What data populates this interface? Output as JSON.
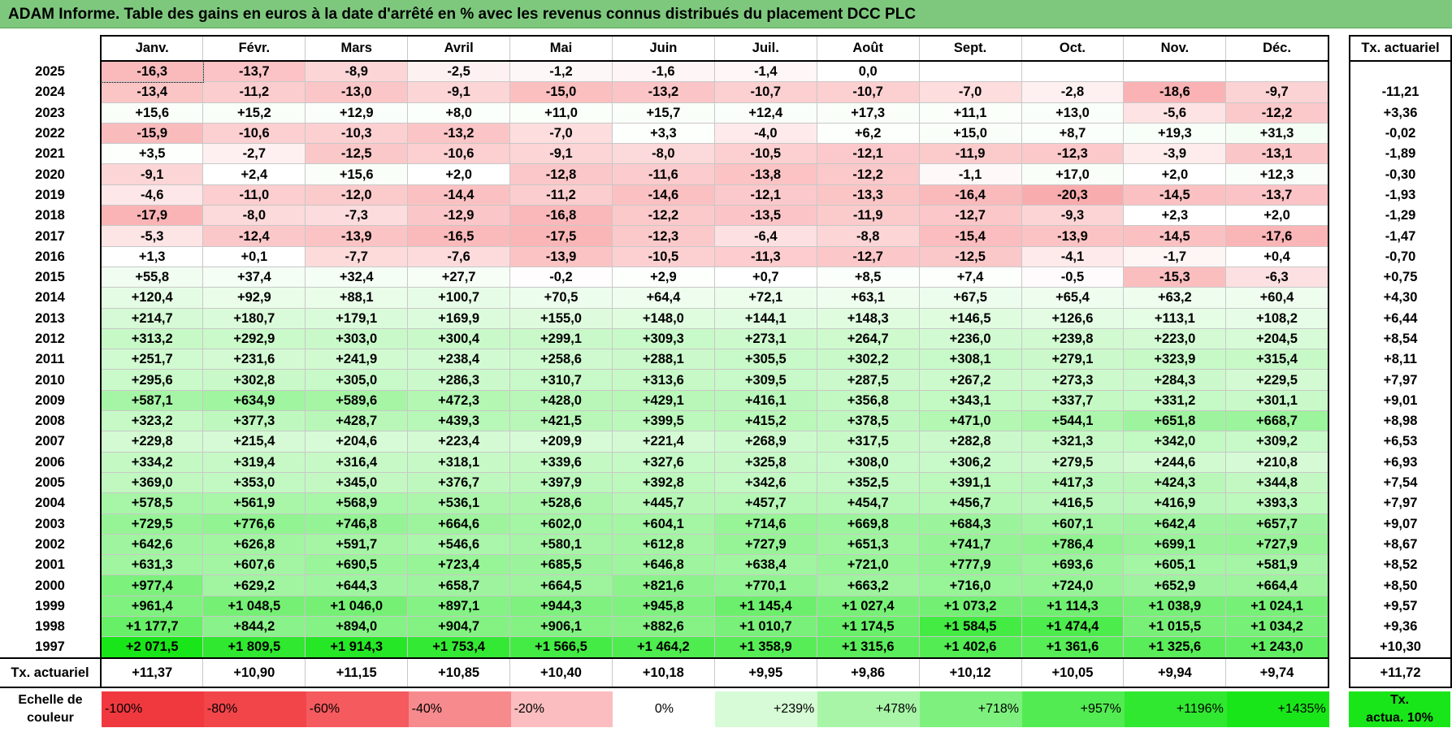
{
  "title": "ADAM Informe. Table des gains en euros à la date d'arrêté en % avec les revenus connus distribués du placement DCC PLC",
  "months": [
    "Janv.",
    "Févr.",
    "Mars",
    "Avril",
    "Mai",
    "Juin",
    "Juil.",
    "Août",
    "Sept.",
    "Oct.",
    "Nov.",
    "Déc."
  ],
  "rate_header": "Tx. actuariel",
  "rows": [
    {
      "year": "2025",
      "values": [
        "-16,3",
        "-13,7",
        "-8,9",
        "-2,5",
        "-1,2",
        "-1,6",
        "-1,4",
        "0,0",
        "",
        "",
        "",
        ""
      ],
      "rate": ""
    },
    {
      "year": "2024",
      "values": [
        "-13,4",
        "-11,2",
        "-13,0",
        "-9,1",
        "-15,0",
        "-13,2",
        "-10,7",
        "-10,7",
        "-7,0",
        "-2,8",
        "-18,6",
        "-9,7"
      ],
      "rate": "-11,21"
    },
    {
      "year": "2023",
      "values": [
        "+15,6",
        "+15,2",
        "+12,9",
        "+8,0",
        "+11,0",
        "+15,7",
        "+12,4",
        "+17,3",
        "+11,1",
        "+13,0",
        "-5,6",
        "-12,2"
      ],
      "rate": "+3,36"
    },
    {
      "year": "2022",
      "values": [
        "-15,9",
        "-10,6",
        "-10,3",
        "-13,2",
        "-7,0",
        "+3,3",
        "-4,0",
        "+6,2",
        "+15,0",
        "+8,7",
        "+19,3",
        "+31,3"
      ],
      "rate": "-0,02"
    },
    {
      "year": "2021",
      "values": [
        "+3,5",
        "-2,7",
        "-12,5",
        "-10,6",
        "-9,1",
        "-8,0",
        "-10,5",
        "-12,1",
        "-11,9",
        "-12,3",
        "-3,9",
        "-13,1"
      ],
      "rate": "-1,89"
    },
    {
      "year": "2020",
      "values": [
        "-9,1",
        "+2,4",
        "+15,6",
        "+2,0",
        "-12,8",
        "-11,6",
        "-13,8",
        "-12,2",
        "-1,1",
        "+17,0",
        "+2,0",
        "+12,3"
      ],
      "rate": "-0,30"
    },
    {
      "year": "2019",
      "values": [
        "-4,6",
        "-11,0",
        "-12,0",
        "-14,4",
        "-11,2",
        "-14,6",
        "-12,1",
        "-13,3",
        "-16,4",
        "-20,3",
        "-14,5",
        "-13,7"
      ],
      "rate": "-1,93"
    },
    {
      "year": "2018",
      "values": [
        "-17,9",
        "-8,0",
        "-7,3",
        "-12,9",
        "-16,8",
        "-12,2",
        "-13,5",
        "-11,9",
        "-12,7",
        "-9,3",
        "+2,3",
        "+2,0"
      ],
      "rate": "-1,29"
    },
    {
      "year": "2017",
      "values": [
        "-5,3",
        "-12,4",
        "-13,9",
        "-16,5",
        "-17,5",
        "-12,3",
        "-6,4",
        "-8,8",
        "-15,4",
        "-13,9",
        "-14,5",
        "-17,6"
      ],
      "rate": "-1,47"
    },
    {
      "year": "2016",
      "values": [
        "+1,3",
        "+0,1",
        "-7,7",
        "-7,6",
        "-13,9",
        "-10,5",
        "-11,3",
        "-12,7",
        "-12,5",
        "-4,1",
        "-1,7",
        "+0,4"
      ],
      "rate": "-0,70"
    },
    {
      "year": "2015",
      "values": [
        "+55,8",
        "+37,4",
        "+32,4",
        "+27,7",
        "-0,2",
        "+2,9",
        "+0,7",
        "+8,5",
        "+7,4",
        "-0,5",
        "-15,3",
        "-6,3"
      ],
      "rate": "+0,75"
    },
    {
      "year": "2014",
      "values": [
        "+120,4",
        "+92,9",
        "+88,1",
        "+100,7",
        "+70,5",
        "+64,4",
        "+72,1",
        "+63,1",
        "+67,5",
        "+65,4",
        "+63,2",
        "+60,4"
      ],
      "rate": "+4,30"
    },
    {
      "year": "2013",
      "values": [
        "+214,7",
        "+180,7",
        "+179,1",
        "+169,9",
        "+155,0",
        "+148,0",
        "+144,1",
        "+148,3",
        "+146,5",
        "+126,6",
        "+113,1",
        "+108,2"
      ],
      "rate": "+6,44"
    },
    {
      "year": "2012",
      "values": [
        "+313,2",
        "+292,9",
        "+303,0",
        "+300,4",
        "+299,1",
        "+309,3",
        "+273,1",
        "+264,7",
        "+236,0",
        "+239,8",
        "+223,0",
        "+204,5"
      ],
      "rate": "+8,54"
    },
    {
      "year": "2011",
      "values": [
        "+251,7",
        "+231,6",
        "+241,9",
        "+238,4",
        "+258,6",
        "+288,1",
        "+305,5",
        "+302,2",
        "+308,1",
        "+279,1",
        "+323,9",
        "+315,4"
      ],
      "rate": "+8,11"
    },
    {
      "year": "2010",
      "values": [
        "+295,6",
        "+302,8",
        "+305,0",
        "+286,3",
        "+310,7",
        "+313,6",
        "+309,5",
        "+287,5",
        "+267,2",
        "+273,3",
        "+284,3",
        "+229,5"
      ],
      "rate": "+7,97"
    },
    {
      "year": "2009",
      "values": [
        "+587,1",
        "+634,9",
        "+589,6",
        "+472,3",
        "+428,0",
        "+429,1",
        "+416,1",
        "+356,8",
        "+343,1",
        "+337,7",
        "+331,2",
        "+301,1"
      ],
      "rate": "+9,01"
    },
    {
      "year": "2008",
      "values": [
        "+323,2",
        "+377,3",
        "+428,7",
        "+439,3",
        "+421,5",
        "+399,5",
        "+415,2",
        "+378,5",
        "+471,0",
        "+544,1",
        "+651,8",
        "+668,7"
      ],
      "rate": "+8,98"
    },
    {
      "year": "2007",
      "values": [
        "+229,8",
        "+215,4",
        "+204,6",
        "+223,4",
        "+209,9",
        "+221,4",
        "+268,9",
        "+317,5",
        "+282,8",
        "+321,3",
        "+342,0",
        "+309,2"
      ],
      "rate": "+6,53"
    },
    {
      "year": "2006",
      "values": [
        "+334,2",
        "+319,4",
        "+316,4",
        "+318,1",
        "+339,6",
        "+327,6",
        "+325,8",
        "+308,0",
        "+306,2",
        "+279,5",
        "+244,6",
        "+210,8"
      ],
      "rate": "+6,93"
    },
    {
      "year": "2005",
      "values": [
        "+369,0",
        "+353,0",
        "+345,0",
        "+376,7",
        "+397,9",
        "+392,8",
        "+342,6",
        "+352,5",
        "+391,1",
        "+417,3",
        "+424,3",
        "+344,8"
      ],
      "rate": "+7,54"
    },
    {
      "year": "2004",
      "values": [
        "+578,5",
        "+561,9",
        "+568,9",
        "+536,1",
        "+528,6",
        "+445,7",
        "+457,7",
        "+454,7",
        "+456,7",
        "+416,5",
        "+416,9",
        "+393,3"
      ],
      "rate": "+7,97"
    },
    {
      "year": "2003",
      "values": [
        "+729,5",
        "+776,6",
        "+746,8",
        "+664,6",
        "+602,0",
        "+604,1",
        "+714,6",
        "+669,8",
        "+684,3",
        "+607,1",
        "+642,4",
        "+657,7"
      ],
      "rate": "+9,07"
    },
    {
      "year": "2002",
      "values": [
        "+642,6",
        "+626,8",
        "+591,7",
        "+546,6",
        "+580,1",
        "+612,8",
        "+727,9",
        "+651,3",
        "+741,7",
        "+786,4",
        "+699,1",
        "+727,9"
      ],
      "rate": "+8,67"
    },
    {
      "year": "2001",
      "values": [
        "+631,3",
        "+607,6",
        "+690,5",
        "+723,4",
        "+685,5",
        "+646,8",
        "+638,4",
        "+721,0",
        "+777,9",
        "+693,6",
        "+605,1",
        "+581,9"
      ],
      "rate": "+8,52"
    },
    {
      "year": "2000",
      "values": [
        "+977,4",
        "+629,2",
        "+644,3",
        "+658,7",
        "+664,5",
        "+821,6",
        "+770,1",
        "+663,2",
        "+716,0",
        "+724,0",
        "+652,9",
        "+664,4"
      ],
      "rate": "+8,50"
    },
    {
      "year": "1999",
      "values": [
        "+961,4",
        "+1 048,5",
        "+1 046,0",
        "+897,1",
        "+944,3",
        "+945,8",
        "+1 145,4",
        "+1 027,4",
        "+1 073,2",
        "+1 114,3",
        "+1 038,9",
        "+1 024,1"
      ],
      "rate": "+9,57"
    },
    {
      "year": "1998",
      "values": [
        "+1 177,7",
        "+844,2",
        "+894,0",
        "+904,7",
        "+906,1",
        "+882,6",
        "+1 010,7",
        "+1 174,5",
        "+1 584,5",
        "+1 474,4",
        "+1 015,5",
        "+1 034,2"
      ],
      "rate": "+9,36"
    },
    {
      "year": "1997",
      "values": [
        "+2 071,5",
        "+1 809,5",
        "+1 914,3",
        "+1 753,4",
        "+1 566,5",
        "+1 464,2",
        "+1 358,9",
        "+1 315,6",
        "+1 402,6",
        "+1 361,6",
        "+1 325,6",
        "+1 243,0"
      ],
      "rate": "+10,30"
    }
  ],
  "footer": {
    "label": "Tx. actuariel",
    "values": [
      "+11,37",
      "+10,90",
      "+11,15",
      "+10,85",
      "+10,40",
      "+10,18",
      "+9,95",
      "+9,86",
      "+10,12",
      "+10,05",
      "+9,94",
      "+9,74"
    ],
    "rate": "+11,72"
  },
  "legend": {
    "label_line1": "Echelle de",
    "label_line2": "couleur",
    "swatches": [
      {
        "label": "-100%",
        "color": "#f0393f",
        "align": "left"
      },
      {
        "label": "-80%",
        "color": "#f2454a",
        "align": "left"
      },
      {
        "label": "-60%",
        "color": "#f55a5e",
        "align": "left"
      },
      {
        "label": "-40%",
        "color": "#f78a8d",
        "align": "left"
      },
      {
        "label": "-20%",
        "color": "#fbbdbf",
        "align": "left"
      },
      {
        "label": "0%",
        "color": "#ffffff",
        "align": "center"
      },
      {
        "label": "+239%",
        "color": "#d6fbd6",
        "align": "right"
      },
      {
        "label": "+478%",
        "color": "#a8f5a8",
        "align": "right"
      },
      {
        "label": "+718%",
        "color": "#7ef07e",
        "align": "right"
      },
      {
        "label": "+957%",
        "color": "#52ec52",
        "align": "right"
      },
      {
        "label": "+1196%",
        "color": "#30e830",
        "align": "right"
      },
      {
        "label": "+1435%",
        "color": "#19e619",
        "align": "right"
      }
    ],
    "target_line1": "Tx.",
    "target_line2": "actua. 10%",
    "target_color": "#19e619"
  }
}
